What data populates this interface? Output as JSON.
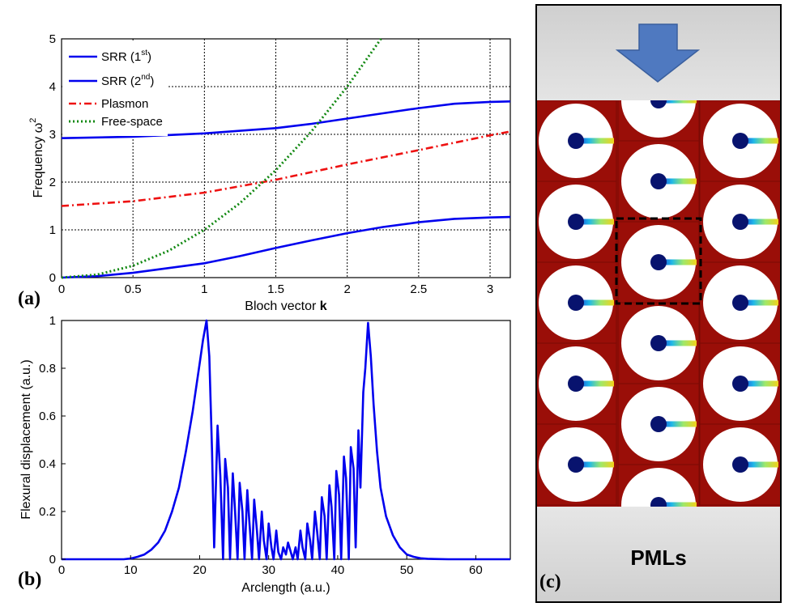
{
  "labels": {
    "panel_a": "(a)",
    "panel_b": "(b)",
    "panel_c": "(c)",
    "pml": "PMLs"
  },
  "colors": {
    "srr": "#0000ee",
    "plasmon": "#ee1111",
    "freespace": "#118811",
    "mesh_bg": "#9a0e08",
    "pml_gray": "#d6d6d6",
    "arrow": "#4f79c0"
  },
  "chart_data": [
    {
      "type": "line",
      "xlabel_text": "Bloch vector  ",
      "xlabel_bold": "k",
      "ylabel_text": "Frequency  ω",
      "ylabel_sup": "2",
      "xlim": [
        0,
        3.1416
      ],
      "ylim": [
        0,
        5
      ],
      "xticks": [
        0,
        0.5,
        1,
        1.5,
        2,
        2.5,
        3
      ],
      "xtick_labels": [
        "0",
        "0.5",
        "1",
        "1.5",
        "2",
        "2.5",
        "3"
      ],
      "yticks": [
        0,
        1,
        2,
        3,
        4,
        5
      ],
      "ytick_labels": [
        "0",
        "1",
        "2",
        "3",
        "4",
        "5"
      ],
      "grid": true,
      "legend_position": "top-left",
      "legend": [
        {
          "base": "SRR (1",
          "sup": "st",
          "tail": ")",
          "style": "solid",
          "color": "#0000ee"
        },
        {
          "base": "SRR (2",
          "sup": "nd",
          "tail": ")",
          "style": "solid",
          "color": "#0000ee"
        },
        {
          "base": "Plasmon",
          "sup": "",
          "tail": "",
          "style": "dashdot",
          "color": "#ee1111"
        },
        {
          "base": "Free-space",
          "sup": "",
          "tail": "",
          "style": "dotted",
          "color": "#118811"
        }
      ],
      "series": [
        {
          "name": "SRR (1st)",
          "style": "solid",
          "color": "#0000ee",
          "x": [
            0,
            0.25,
            0.5,
            0.75,
            1.0,
            1.25,
            1.5,
            1.75,
            2.0,
            2.25,
            2.5,
            2.75,
            3.0,
            3.1416
          ],
          "y": [
            0.0,
            0.03,
            0.1,
            0.2,
            0.3,
            0.45,
            0.62,
            0.78,
            0.93,
            1.06,
            1.16,
            1.23,
            1.26,
            1.27
          ]
        },
        {
          "name": "SRR (2nd)",
          "style": "solid",
          "color": "#0000ee",
          "x": [
            0,
            0.5,
            1.0,
            1.5,
            1.75,
            2.0,
            2.25,
            2.5,
            2.75,
            3.0,
            3.1416
          ],
          "y": [
            2.92,
            2.95,
            3.02,
            3.13,
            3.22,
            3.33,
            3.44,
            3.55,
            3.64,
            3.68,
            3.69
          ]
        },
        {
          "name": "Plasmon",
          "style": "dashdot",
          "color": "#ee1111",
          "x": [
            0,
            0.5,
            1.0,
            1.5,
            2.0,
            2.5,
            3.0,
            3.1416
          ],
          "y": [
            1.5,
            1.6,
            1.78,
            2.05,
            2.37,
            2.67,
            2.98,
            3.06
          ]
        },
        {
          "name": "Free-space",
          "style": "dotted",
          "color": "#118811",
          "x": [
            0,
            0.25,
            0.5,
            0.75,
            1.0,
            1.25,
            1.5,
            1.75,
            2.0,
            2.236
          ],
          "y": [
            0,
            0.0625,
            0.25,
            0.5625,
            1.0,
            1.5625,
            2.25,
            3.0625,
            4.0,
            5.0
          ]
        }
      ]
    },
    {
      "type": "line",
      "xlabel": "Arclength (a.u.)",
      "ylabel": "Flexural displacement (a.u.)",
      "xlim": [
        0,
        65
      ],
      "ylim": [
        0,
        1
      ],
      "xticks": [
        0,
        10,
        20,
        30,
        40,
        50,
        60
      ],
      "xtick_labels": [
        "0",
        "10",
        "20",
        "30",
        "40",
        "50",
        "60"
      ],
      "yticks": [
        0,
        0.2,
        0.4,
        0.6,
        0.8,
        1
      ],
      "ytick_labels": [
        "0",
        "0.2",
        "0.4",
        "0.6",
        "0.8",
        "1"
      ],
      "grid": false,
      "series": [
        {
          "name": "Flexural displacement",
          "color": "#0000ee",
          "x": [
            0,
            9,
            10,
            11,
            12,
            13,
            14,
            15,
            16,
            17,
            18,
            19,
            20,
            20.5,
            21,
            21.4,
            21.8,
            22.1,
            22.6,
            23.0,
            23.4,
            23.7,
            24.1,
            24.4,
            24.8,
            25.1,
            25.5,
            25.8,
            26.2,
            26.5,
            26.9,
            27.2,
            27.6,
            27.9,
            28.3,
            28.6,
            29.0,
            29.3,
            29.7,
            30.0,
            30.4,
            30.7,
            31.1,
            31.4,
            31.8,
            32.1,
            32.5,
            32.8,
            33.2,
            33.5,
            33.9,
            34.2,
            34.6,
            34.9,
            35.3,
            35.6,
            36.0,
            36.3,
            36.7,
            37.0,
            37.4,
            37.7,
            38.1,
            38.4,
            38.8,
            39.1,
            39.5,
            39.8,
            40.2,
            40.5,
            40.9,
            41.2,
            41.6,
            41.9,
            42.3,
            42.6,
            43.0,
            43.3,
            43.7,
            44.0,
            44.4,
            44.8,
            45.2,
            45.7,
            46.2,
            47,
            48,
            49,
            50,
            51,
            52,
            53,
            54,
            56,
            65
          ],
          "y": [
            0,
            0,
            0.003,
            0.01,
            0.02,
            0.04,
            0.07,
            0.12,
            0.2,
            0.3,
            0.45,
            0.62,
            0.82,
            0.92,
            1.0,
            0.85,
            0.45,
            0.05,
            0.56,
            0.35,
            0.0,
            0.42,
            0.3,
            0.0,
            0.36,
            0.22,
            0.0,
            0.32,
            0.2,
            0.0,
            0.29,
            0.16,
            0.0,
            0.25,
            0.12,
            0.0,
            0.2,
            0.08,
            0.0,
            0.15,
            0.05,
            0.0,
            0.12,
            0.03,
            0.0,
            0.05,
            0.02,
            0.07,
            0.03,
            0.0,
            0.05,
            0.0,
            0.12,
            0.05,
            0.0,
            0.15,
            0.08,
            0.0,
            0.2,
            0.12,
            0.0,
            0.26,
            0.18,
            0.0,
            0.31,
            0.22,
            0.0,
            0.37,
            0.27,
            0.0,
            0.43,
            0.34,
            0.0,
            0.47,
            0.38,
            0.05,
            0.54,
            0.3,
            0.7,
            0.8,
            0.99,
            0.85,
            0.65,
            0.45,
            0.3,
            0.18,
            0.1,
            0.05,
            0.02,
            0.01,
            0.004,
            0.002,
            0.001,
            0,
            0
          ]
        }
      ]
    }
  ]
}
